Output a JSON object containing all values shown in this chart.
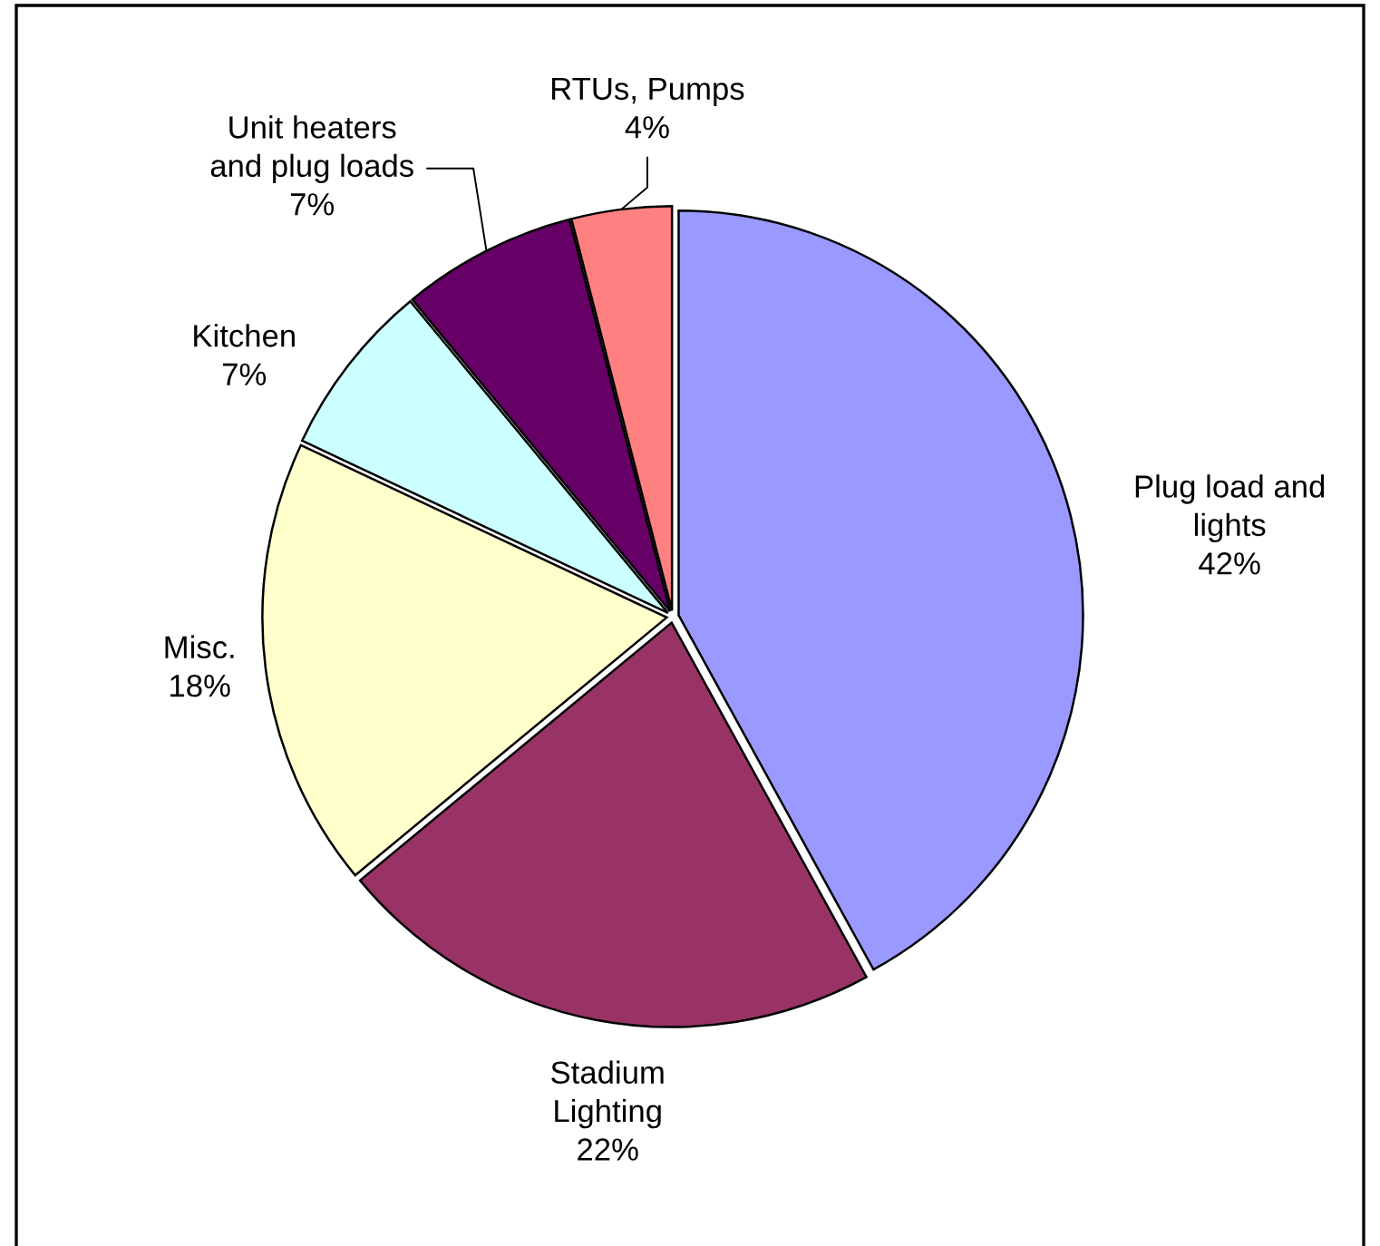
{
  "chart_data": {
    "type": "pie",
    "categories": [
      "Plug load and lights",
      "Stadium Lighting",
      "Misc.",
      "Kitchen",
      "Unit heaters and plug loads",
      "RTUs, Pumps"
    ],
    "values": [
      42,
      22,
      18,
      7,
      7,
      4
    ],
    "colors": [
      "#9999ff",
      "#993366",
      "#ffffcc",
      "#ccffff",
      "#660066",
      "#ff8080"
    ],
    "value_labels": [
      "42%",
      "22%",
      "18%",
      "7%",
      "7%",
      "4%"
    ]
  }
}
